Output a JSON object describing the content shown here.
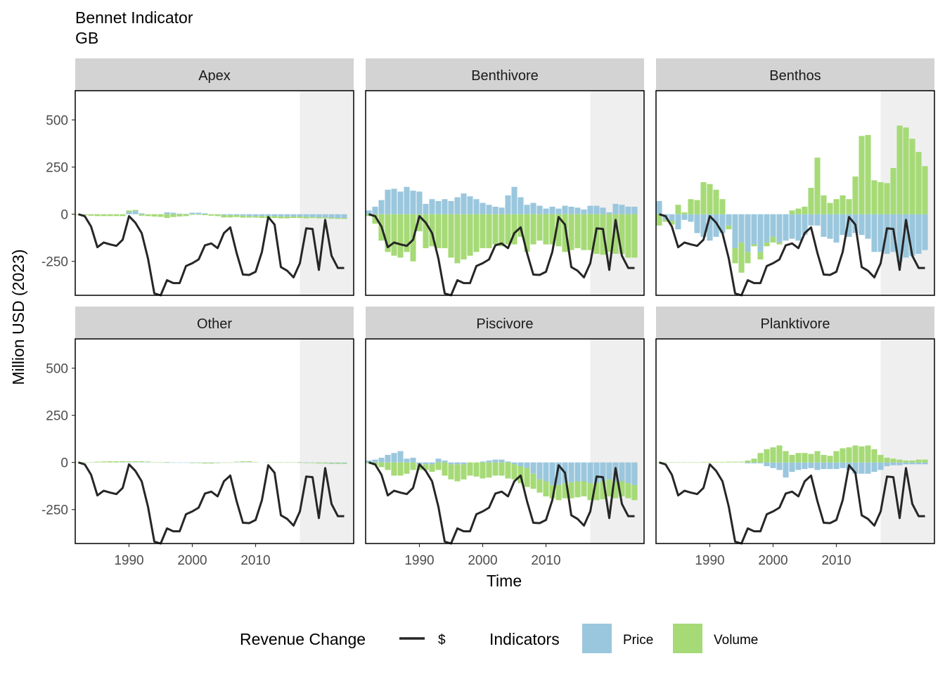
{
  "title": "Bennet Indicator",
  "subtitle": "GB",
  "chart_data": {
    "type": "bar+line",
    "title": "Bennet Indicator",
    "subtitle": "GB",
    "xlabel": "Time",
    "ylabel": "Million USD (2023)",
    "xlim": [
      1981.5,
      2025.5
    ],
    "ylim": [
      -430,
      655
    ],
    "x_ticks": [
      1990,
      2000,
      2010
    ],
    "y_ticks": [
      500,
      250,
      0,
      -250
    ],
    "y_tick_labels": [
      "500",
      "250",
      "0",
      "-250"
    ],
    "shaded_region": {
      "from": 2017,
      "to": 2025.5
    },
    "grid": false,
    "legend": {
      "position": "bottom",
      "line_title": "Revenue Change",
      "line_label": "$",
      "bar_title": "Indicators",
      "price_label": "Price",
      "volume_label": "Volume"
    },
    "colors": {
      "price": "#9ac7dd",
      "volume": "#a6da76",
      "line": "#262626",
      "strip": "#d3d3d3",
      "shade": "#efefef"
    },
    "years": [
      1982,
      1983,
      1984,
      1985,
      1986,
      1987,
      1988,
      1989,
      1990,
      1991,
      1992,
      1993,
      1994,
      1995,
      1996,
      1997,
      1998,
      1999,
      2000,
      2001,
      2002,
      2003,
      2004,
      2005,
      2006,
      2007,
      2008,
      2009,
      2010,
      2011,
      2012,
      2013,
      2014,
      2015,
      2016,
      2017,
      2018,
      2019,
      2020,
      2021,
      2022,
      2023,
      2024
    ],
    "revenue_change": [
      0,
      -10,
      -65,
      -175,
      -150,
      -160,
      -168,
      -135,
      -10,
      -45,
      -100,
      -235,
      -420,
      -430,
      -350,
      -365,
      -365,
      -275,
      -260,
      -240,
      -165,
      -155,
      -180,
      -100,
      -70,
      -205,
      -320,
      -322,
      -305,
      -200,
      -15,
      -55,
      -280,
      -300,
      -335,
      -260,
      -75,
      -78,
      -295,
      -30,
      -220,
      -285,
      -285
    ],
    "panels": [
      {
        "name": "Apex",
        "price": [
          0,
          0,
          0,
          0,
          0,
          0,
          0,
          0,
          12,
          18,
          5,
          0,
          0,
          0,
          10,
          8,
          3,
          2,
          8,
          8,
          5,
          0,
          0,
          -5,
          -5,
          -5,
          -8,
          -10,
          -10,
          -10,
          -10,
          -10,
          -12,
          -12,
          -12,
          -12,
          -14,
          -14,
          -16,
          -16,
          -18,
          -20,
          -20
        ],
        "volume": [
          -3,
          -5,
          -8,
          -10,
          -10,
          -10,
          -10,
          -10,
          8,
          5,
          -8,
          -10,
          -12,
          -14,
          -20,
          -15,
          -12,
          -10,
          -3,
          -3,
          -5,
          -8,
          -10,
          -12,
          -12,
          -10,
          -10,
          -8,
          -8,
          -10,
          -10,
          -10,
          -10,
          -10,
          -8,
          -8,
          -8,
          -6,
          -6,
          -6,
          -6,
          -5,
          -5
        ]
      },
      {
        "name": "Benthivore",
        "price": [
          20,
          40,
          75,
          130,
          135,
          120,
          145,
          125,
          120,
          55,
          80,
          70,
          80,
          70,
          90,
          110,
          95,
          80,
          60,
          50,
          40,
          35,
          100,
          145,
          90,
          50,
          60,
          45,
          30,
          40,
          30,
          45,
          40,
          35,
          25,
          45,
          45,
          35,
          10,
          55,
          50,
          40,
          40
        ],
        "volume": [
          -10,
          -50,
          -140,
          -200,
          -220,
          -230,
          -200,
          -250,
          -90,
          -180,
          -170,
          -180,
          -180,
          -230,
          -260,
          -240,
          -220,
          -200,
          -180,
          -180,
          -160,
          -170,
          -160,
          -160,
          -120,
          -200,
          -160,
          -140,
          -160,
          -160,
          -170,
          -200,
          -190,
          -180,
          -190,
          -190,
          -210,
          -215,
          -200,
          -210,
          -210,
          -230,
          -230
        ]
      },
      {
        "name": "Benthos",
        "price": [
          70,
          -30,
          -35,
          -80,
          -30,
          -40,
          -100,
          -120,
          -140,
          -120,
          -100,
          -60,
          -180,
          -150,
          -200,
          -160,
          -200,
          -150,
          -120,
          -150,
          -140,
          -130,
          -140,
          -110,
          -60,
          -60,
          -120,
          -130,
          -150,
          -110,
          -120,
          -100,
          -110,
          -130,
          -200,
          -200,
          -210,
          -200,
          -250,
          -230,
          -220,
          -210,
          -190
        ],
        "volume": [
          -60,
          -10,
          -20,
          50,
          10,
          80,
          75,
          170,
          160,
          130,
          80,
          -20,
          -80,
          -160,
          -60,
          -10,
          -40,
          -20,
          -30,
          -10,
          0,
          20,
          30,
          40,
          140,
          300,
          100,
          60,
          80,
          100,
          80,
          200,
          415,
          420,
          180,
          170,
          165,
          245,
          470,
          460,
          400,
          330,
          255
        ]
      },
      {
        "name": "Other",
        "price": [
          0,
          0,
          0,
          0,
          0,
          0,
          0,
          2,
          2,
          2,
          2,
          2,
          0,
          0,
          -2,
          -2,
          -2,
          -2,
          -2,
          -2,
          -2,
          -2,
          -2,
          0,
          0,
          2,
          2,
          2,
          0,
          0,
          0,
          0,
          0,
          0,
          0,
          -2,
          -2,
          -2,
          -2,
          -2,
          -4,
          -4,
          -4
        ],
        "volume": [
          2,
          2,
          2,
          4,
          5,
          6,
          6,
          5,
          4,
          4,
          4,
          3,
          2,
          2,
          2,
          0,
          0,
          0,
          -2,
          -2,
          -4,
          -4,
          -2,
          -2,
          -2,
          2,
          4,
          4,
          2,
          0,
          2,
          2,
          2,
          2,
          2,
          2,
          -2,
          -2,
          -4,
          -4,
          -4,
          -4,
          -4
        ]
      },
      {
        "name": "Piscivore",
        "price": [
          10,
          15,
          25,
          40,
          50,
          60,
          20,
          25,
          -10,
          -10,
          -10,
          20,
          10,
          -10,
          -10,
          -10,
          0,
          0,
          5,
          10,
          15,
          15,
          5,
          -10,
          -20,
          -30,
          -60,
          -90,
          -100,
          -120,
          -120,
          -110,
          -105,
          -100,
          -100,
          -110,
          -110,
          -100,
          -90,
          -100,
          -100,
          -110,
          -120
        ],
        "volume": [
          -5,
          -15,
          -25,
          -40,
          -70,
          -70,
          -60,
          -40,
          -30,
          -30,
          -40,
          -40,
          -70,
          -80,
          -90,
          -80,
          -70,
          -75,
          -85,
          -80,
          -70,
          -70,
          -85,
          -80,
          -90,
          -100,
          -80,
          -70,
          -80,
          -70,
          -80,
          -80,
          -85,
          -85,
          -80,
          -90,
          -90,
          -95,
          -90,
          -90,
          -80,
          -80,
          -80
        ]
      },
      {
        "name": "Planktivore",
        "price": [
          0,
          0,
          0,
          0,
          0,
          0,
          0,
          0,
          0,
          0,
          0,
          0,
          0,
          0,
          -5,
          -5,
          -5,
          -20,
          -30,
          -40,
          -80,
          -50,
          -40,
          -35,
          -30,
          -40,
          -35,
          -35,
          -35,
          -30,
          -40,
          -60,
          -60,
          -60,
          -50,
          -40,
          -20,
          -15,
          -15,
          -10,
          -10,
          -10,
          -10
        ],
        "volume": [
          2,
          2,
          2,
          2,
          2,
          2,
          2,
          3,
          3,
          3,
          3,
          4,
          4,
          4,
          10,
          20,
          50,
          70,
          80,
          90,
          60,
          40,
          50,
          50,
          45,
          60,
          40,
          35,
          60,
          75,
          80,
          90,
          85,
          90,
          70,
          40,
          25,
          20,
          15,
          10,
          10,
          15,
          15
        ]
      }
    ]
  }
}
